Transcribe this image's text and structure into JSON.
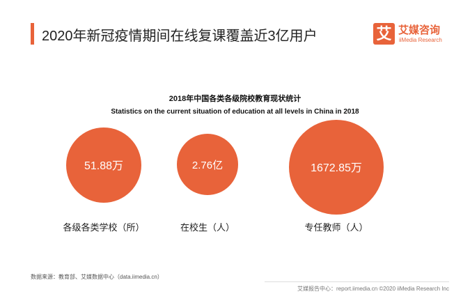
{
  "header": {
    "title": "2020年新冠疫情期间在线复课覆盖近3亿用户",
    "logo_badge": "艾",
    "logo_cn": "艾媒咨询",
    "logo_en": "iiMedia Research"
  },
  "chart_data": {
    "type": "bubble",
    "title": "2018年中国各类各级院校教育现状统计",
    "subtitle": "Statistics on the current situation of education at all levels in China in 2018",
    "items": [
      {
        "label": "各级各类学校（所）",
        "value": 51.88,
        "display": "51.88万"
      },
      {
        "label": "在校生（人）",
        "value": 2.76,
        "display": "2.76亿"
      },
      {
        "label": "专任教师（人）",
        "value": 1672.85,
        "display": "1672.85万"
      }
    ],
    "color": "#e8633a"
  },
  "footer": {
    "source": "数据来源：教育部、艾媒数据中心（data.iimedia.cn）",
    "report": "艾媒报告中心：report.iimedia.cn  ©2020  iiMedia Research Inc"
  }
}
